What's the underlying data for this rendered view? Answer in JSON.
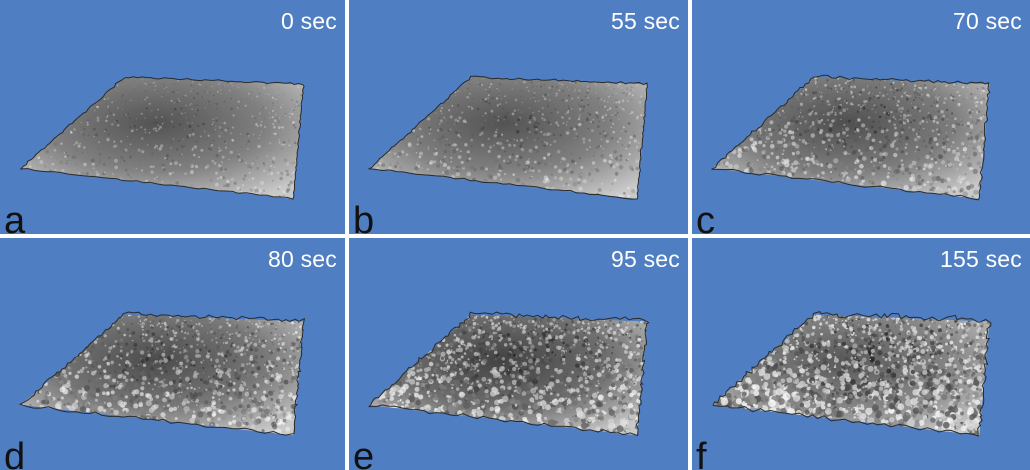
{
  "figure": {
    "panels": [
      {
        "letter": "a",
        "time": "0 sec",
        "roughness": 0.15,
        "darkness": 0.55
      },
      {
        "letter": "b",
        "time": "55 sec",
        "roughness": 0.25,
        "darkness": 0.55
      },
      {
        "letter": "c",
        "time": "70 sec",
        "roughness": 0.45,
        "darkness": 0.6
      },
      {
        "letter": "d",
        "time": "80 sec",
        "roughness": 0.6,
        "darkness": 0.65
      },
      {
        "letter": "e",
        "time": "95 sec",
        "roughness": 0.75,
        "darkness": 0.75
      },
      {
        "letter": "f",
        "time": "155 sec",
        "roughness": 0.9,
        "darkness": 0.5
      }
    ],
    "colors": {
      "background": "#4f7fc2",
      "surface_light": "#d8d8d8",
      "surface_dark": "#2a2a2a",
      "label_text": "#ffffff",
      "letter_text": "#111111"
    }
  }
}
